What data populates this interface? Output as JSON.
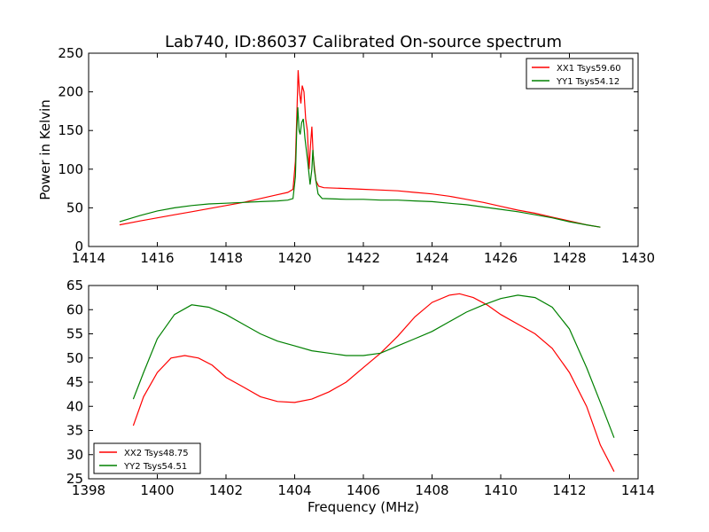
{
  "figure": {
    "title": "Lab740, ID:86037 Calibrated On-source spectrum",
    "xlabel": "Frequency (MHz)"
  },
  "chart_data": [
    {
      "type": "line",
      "title": "Lab740, ID:86037 Calibrated On-source spectrum",
      "xlabel": "",
      "ylabel": "Power in Kelvin",
      "xlim": [
        1414,
        1430
      ],
      "ylim": [
        0,
        250
      ],
      "xticks": [
        1414,
        1416,
        1418,
        1420,
        1422,
        1424,
        1426,
        1428,
        1430
      ],
      "yticks": [
        0,
        50,
        100,
        150,
        200,
        250
      ],
      "grid": false,
      "legend": "top-right",
      "series": [
        {
          "name": "XX1 Tsys59.60",
          "color": "#ff0000",
          "points": [
            [
              1414.9,
              28
            ],
            [
              1415.5,
              33
            ],
            [
              1416,
              37
            ],
            [
              1416.5,
              41
            ],
            [
              1417,
              45
            ],
            [
              1417.5,
              49
            ],
            [
              1418,
              53
            ],
            [
              1418.5,
              57
            ],
            [
              1419,
              62
            ],
            [
              1419.5,
              67
            ],
            [
              1419.8,
              70
            ],
            [
              1419.95,
              74
            ],
            [
              1420.02,
              110
            ],
            [
              1420.07,
              180
            ],
            [
              1420.1,
              228
            ],
            [
              1420.14,
              200
            ],
            [
              1420.18,
              185
            ],
            [
              1420.22,
              208
            ],
            [
              1420.27,
              200
            ],
            [
              1420.32,
              165
            ],
            [
              1420.37,
              150
            ],
            [
              1420.42,
              100
            ],
            [
              1420.46,
              130
            ],
            [
              1420.5,
              155
            ],
            [
              1420.54,
              118
            ],
            [
              1420.58,
              100
            ],
            [
              1420.62,
              85
            ],
            [
              1420.7,
              78
            ],
            [
              1420.85,
              76
            ],
            [
              1421.5,
              75
            ],
            [
              1422,
              74
            ],
            [
              1422.5,
              73
            ],
            [
              1423,
              72
            ],
            [
              1423.5,
              70
            ],
            [
              1424,
              68
            ],
            [
              1424.5,
              65
            ],
            [
              1425,
              61
            ],
            [
              1425.5,
              57
            ],
            [
              1426,
              52
            ],
            [
              1426.5,
              47
            ],
            [
              1427,
              43
            ],
            [
              1427.5,
              38
            ],
            [
              1428,
              33
            ],
            [
              1428.5,
              28
            ],
            [
              1428.9,
              25
            ]
          ]
        },
        {
          "name": "YY1 Tsys54.12",
          "color": "#008000",
          "points": [
            [
              1414.9,
              32
            ],
            [
              1415.5,
              40
            ],
            [
              1416,
              46
            ],
            [
              1416.5,
              50
            ],
            [
              1417,
              53
            ],
            [
              1417.5,
              55
            ],
            [
              1418,
              56
            ],
            [
              1418.5,
              57
            ],
            [
              1419,
              58
            ],
            [
              1419.5,
              59
            ],
            [
              1419.8,
              60
            ],
            [
              1419.95,
              62
            ],
            [
              1420.02,
              90
            ],
            [
              1420.06,
              150
            ],
            [
              1420.09,
              180
            ],
            [
              1420.13,
              150
            ],
            [
              1420.16,
              145
            ],
            [
              1420.2,
              160
            ],
            [
              1420.25,
              165
            ],
            [
              1420.3,
              140
            ],
            [
              1420.38,
              110
            ],
            [
              1420.45,
              80
            ],
            [
              1420.5,
              100
            ],
            [
              1420.53,
              125
            ],
            [
              1420.57,
              100
            ],
            [
              1420.62,
              85
            ],
            [
              1420.68,
              68
            ],
            [
              1420.8,
              62
            ],
            [
              1421.5,
              61
            ],
            [
              1422,
              61
            ],
            [
              1422.5,
              60
            ],
            [
              1423,
              60
            ],
            [
              1423.5,
              59
            ],
            [
              1424,
              58
            ],
            [
              1424.5,
              56
            ],
            [
              1425,
              54
            ],
            [
              1425.5,
              51
            ],
            [
              1426,
              48
            ],
            [
              1426.5,
              45
            ],
            [
              1427,
              41
            ],
            [
              1427.5,
              37
            ],
            [
              1428,
              32
            ],
            [
              1428.5,
              28
            ],
            [
              1428.9,
              25
            ]
          ]
        }
      ]
    },
    {
      "type": "line",
      "title": "",
      "xlabel": "Frequency (MHz)",
      "ylabel": "",
      "xlim": [
        1398,
        1414
      ],
      "ylim": [
        25,
        65
      ],
      "xticks": [
        1398,
        1400,
        1402,
        1404,
        1406,
        1408,
        1410,
        1412,
        1414
      ],
      "yticks": [
        25,
        30,
        35,
        40,
        45,
        50,
        55,
        60,
        65
      ],
      "grid": false,
      "legend": "bottom-left",
      "series": [
        {
          "name": "XX2 Tsys48.75",
          "color": "#ff0000",
          "points": [
            [
              1399.3,
              36
            ],
            [
              1399.6,
              42
            ],
            [
              1400,
              47
            ],
            [
              1400.4,
              50
            ],
            [
              1400.8,
              50.5
            ],
            [
              1401.2,
              50
            ],
            [
              1401.6,
              48.5
            ],
            [
              1402,
              46
            ],
            [
              1402.5,
              44
            ],
            [
              1403,
              42
            ],
            [
              1403.5,
              41
            ],
            [
              1404,
              40.8
            ],
            [
              1404.5,
              41.5
            ],
            [
              1405,
              43
            ],
            [
              1405.5,
              45
            ],
            [
              1406,
              48
            ],
            [
              1406.5,
              51
            ],
            [
              1407,
              54.5
            ],
            [
              1407.5,
              58.5
            ],
            [
              1408,
              61.5
            ],
            [
              1408.5,
              63
            ],
            [
              1408.8,
              63.3
            ],
            [
              1409.2,
              62.5
            ],
            [
              1409.6,
              61
            ],
            [
              1410,
              59
            ],
            [
              1410.5,
              57
            ],
            [
              1411,
              55
            ],
            [
              1411.5,
              52
            ],
            [
              1412,
              47
            ],
            [
              1412.5,
              40
            ],
            [
              1412.9,
              32
            ],
            [
              1413.3,
              26.5
            ]
          ]
        },
        {
          "name": "YY2 Tsys54.51",
          "color": "#008000",
          "points": [
            [
              1399.3,
              41.5
            ],
            [
              1399.6,
              47
            ],
            [
              1400,
              54
            ],
            [
              1400.5,
              59
            ],
            [
              1401,
              61
            ],
            [
              1401.5,
              60.5
            ],
            [
              1402,
              59
            ],
            [
              1402.5,
              57
            ],
            [
              1403,
              55
            ],
            [
              1403.5,
              53.5
            ],
            [
              1404,
              52.5
            ],
            [
              1404.5,
              51.5
            ],
            [
              1405,
              51
            ],
            [
              1405.5,
              50.5
            ],
            [
              1406,
              50.5
            ],
            [
              1406.5,
              51
            ],
            [
              1407,
              52.5
            ],
            [
              1407.5,
              54
            ],
            [
              1408,
              55.5
            ],
            [
              1408.5,
              57.5
            ],
            [
              1409,
              59.5
            ],
            [
              1409.5,
              61
            ],
            [
              1410,
              62.3
            ],
            [
              1410.5,
              63
            ],
            [
              1411,
              62.5
            ],
            [
              1411.5,
              60.5
            ],
            [
              1412,
              56
            ],
            [
              1412.5,
              48
            ],
            [
              1413,
              39
            ],
            [
              1413.3,
              33.5
            ]
          ]
        }
      ]
    }
  ]
}
